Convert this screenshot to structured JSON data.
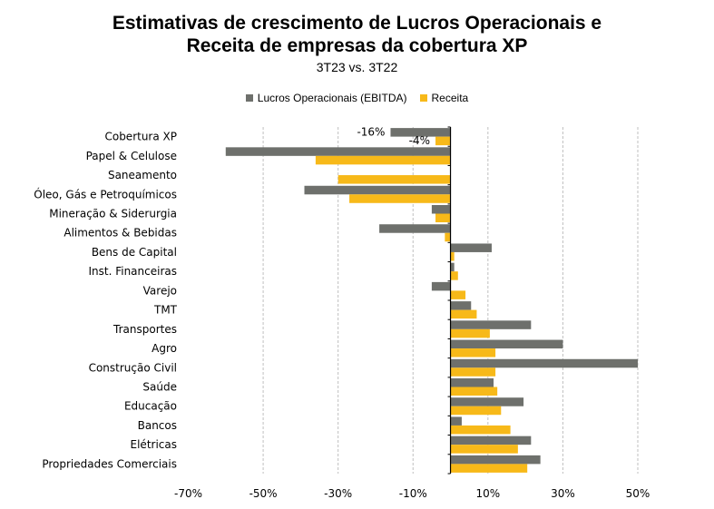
{
  "title_line1": "Estimativas de crescimento de Lucros Operacionais e",
  "title_line2": "Receita de empresas da cobertura XP",
  "subtitle": "3T23 vs. 3T22",
  "colors": {
    "ebitda": "#6e706c",
    "receita": "#f7b919",
    "grid": "#bfbfbf"
  },
  "chart_data": {
    "type": "bar",
    "orientation": "horizontal",
    "title": "Estimativas de crescimento de Lucros Operacionais e Receita de empresas da cobertura XP",
    "subtitle": "3T23 vs. 3T22",
    "categories": [
      "Cobertura XP",
      "Papel & Celulose",
      "Saneamento",
      "Óleo, Gás e Petroquímicos",
      "Mineração & Siderurgia",
      "Alimentos & Bebidas",
      "Bens de Capital",
      "Inst. Financeiras",
      "Varejo",
      "TMT",
      "Transportes",
      "Agro",
      "Construção Civil",
      "Saúde",
      "Educação",
      "Bancos",
      "Elétricas",
      "Propriedades Comerciais"
    ],
    "series": [
      {
        "name": "Lucros Operacionais (EBITDA)",
        "values": [
          -16,
          -60,
          0,
          -39,
          -5,
          -19,
          11,
          1,
          -5,
          5.5,
          21.5,
          30,
          50,
          11.5,
          19.5,
          3,
          21.5,
          24
        ]
      },
      {
        "name": "Receita",
        "values": [
          -4,
          -36,
          -30,
          -27,
          -4,
          -1.5,
          1,
          2,
          4,
          7,
          10.5,
          12,
          12,
          12.5,
          13.5,
          16,
          18,
          20.5
        ]
      }
    ],
    "data_labels": [
      {
        "category": "Cobertura XP",
        "series": "Lucros Operacionais (EBITDA)",
        "text": "-16%"
      },
      {
        "category": "Cobertura XP",
        "series": "Receita",
        "text": "-4%"
      }
    ],
    "xlim": [
      -70,
      50
    ],
    "xticks": [
      "-70%",
      "-50%",
      "-30%",
      "-10%",
      "10%",
      "30%",
      "50%"
    ],
    "xtick_values": [
      -70,
      -50,
      -30,
      -10,
      10,
      30,
      50
    ],
    "grid": true,
    "legend_position": "top"
  }
}
